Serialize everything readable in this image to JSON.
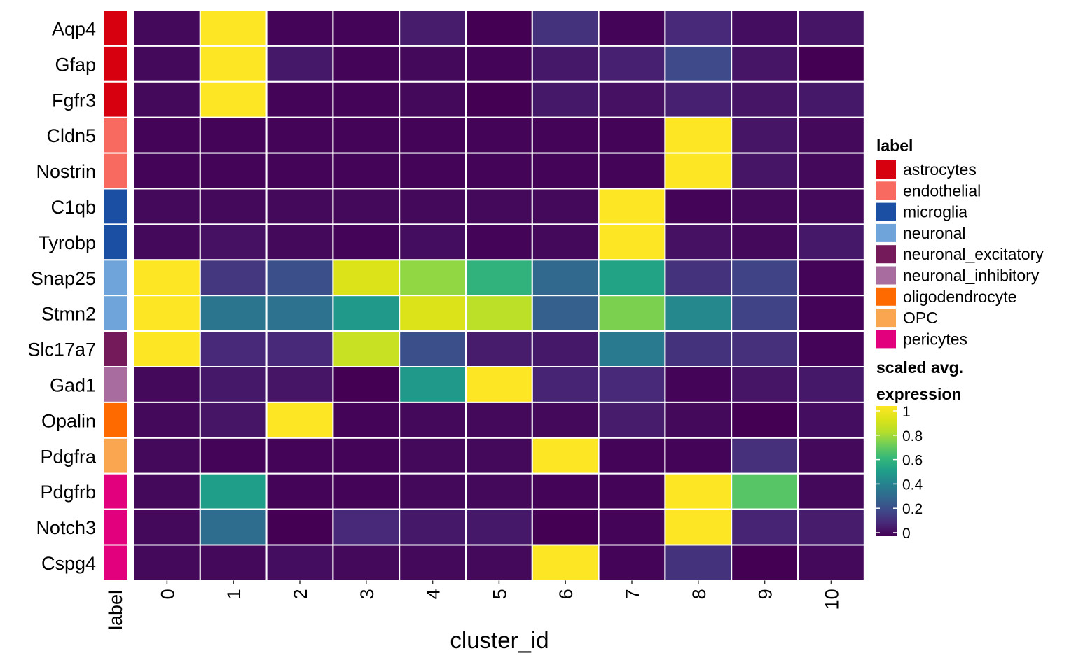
{
  "chart_data": {
    "type": "heatmap",
    "title": "",
    "xlabel": "cluster_id",
    "annotation_column_label": "label",
    "x": [
      "0",
      "1",
      "2",
      "3",
      "4",
      "5",
      "6",
      "7",
      "8",
      "9",
      "10"
    ],
    "genes": [
      "Aqp4",
      "Gfap",
      "Fgfr3",
      "Cldn5",
      "Nostrin",
      "C1qb",
      "Tyrobp",
      "Snap25",
      "Stmn2",
      "Slc17a7",
      "Gad1",
      "Opalin",
      "Pdgfra",
      "Pdgfrb",
      "Notch3",
      "Cspg4"
    ],
    "gene_labels": [
      "astrocytes",
      "astrocytes",
      "astrocytes",
      "endothelial",
      "endothelial",
      "microglia",
      "microglia",
      "neuronal",
      "neuronal",
      "neuronal_excitatory",
      "neuronal_inhibitory",
      "oligodendrocyte",
      "OPC",
      "pericytes",
      "pericytes",
      "pericytes"
    ],
    "values": [
      [
        0.02,
        1.0,
        0.01,
        0.01,
        0.07,
        0.0,
        0.13,
        0.01,
        0.1,
        0.03,
        0.05
      ],
      [
        0.02,
        1.0,
        0.06,
        0.01,
        0.02,
        0.01,
        0.06,
        0.08,
        0.2,
        0.05,
        0.0
      ],
      [
        0.02,
        1.0,
        0.01,
        0.01,
        0.02,
        0.0,
        0.06,
        0.04,
        0.08,
        0.05,
        0.06
      ],
      [
        0.01,
        0.01,
        0.01,
        0.01,
        0.01,
        0.01,
        0.01,
        0.01,
        1.0,
        0.05,
        0.02
      ],
      [
        0.01,
        0.01,
        0.01,
        0.01,
        0.01,
        0.01,
        0.01,
        0.01,
        1.0,
        0.05,
        0.02
      ],
      [
        0.02,
        0.02,
        0.02,
        0.02,
        0.02,
        0.02,
        0.02,
        1.0,
        0.01,
        0.02,
        0.02
      ],
      [
        0.02,
        0.04,
        0.02,
        0.01,
        0.03,
        0.01,
        0.02,
        1.0,
        0.04,
        0.02,
        0.06
      ],
      [
        1.0,
        0.14,
        0.22,
        0.9,
        0.75,
        0.58,
        0.3,
        0.52,
        0.13,
        0.18,
        0.01
      ],
      [
        1.0,
        0.35,
        0.34,
        0.48,
        0.9,
        0.82,
        0.27,
        0.72,
        0.42,
        0.18,
        0.01
      ],
      [
        1.0,
        0.1,
        0.1,
        0.85,
        0.22,
        0.07,
        0.06,
        0.37,
        0.13,
        0.12,
        0.01
      ],
      [
        0.02,
        0.06,
        0.05,
        0.0,
        0.48,
        1.0,
        0.09,
        0.1,
        0.01,
        0.05,
        0.06
      ],
      [
        0.02,
        0.05,
        1.0,
        0.01,
        0.02,
        0.02,
        0.02,
        0.07,
        0.02,
        0.0,
        0.03
      ],
      [
        0.02,
        0.01,
        0.01,
        0.01,
        0.02,
        0.02,
        1.0,
        0.01,
        0.01,
        0.12,
        0.02
      ],
      [
        0.02,
        0.5,
        0.01,
        0.01,
        0.02,
        0.02,
        0.01,
        0.01,
        1.0,
        0.66,
        0.02
      ],
      [
        0.02,
        0.32,
        0.0,
        0.1,
        0.06,
        0.06,
        0.0,
        0.01,
        1.0,
        0.09,
        0.07
      ],
      [
        0.02,
        0.02,
        0.03,
        0.02,
        0.02,
        0.02,
        1.0,
        0.01,
        0.13,
        0.0,
        0.02
      ]
    ],
    "value_range": [
      0,
      1
    ],
    "colormap": "viridis",
    "legend_placement": "right",
    "legends": {
      "label": {
        "title": "label",
        "entries": [
          {
            "name": "astrocytes",
            "color": "#D7000F"
          },
          {
            "name": "endothelial",
            "color": "#F8695F"
          },
          {
            "name": "microglia",
            "color": "#1A4FA3"
          },
          {
            "name": "neuronal",
            "color": "#6FA4DA"
          },
          {
            "name": "neuronal_excitatory",
            "color": "#741A5A"
          },
          {
            "name": "neuronal_inhibitory",
            "color": "#A96C9E"
          },
          {
            "name": "oligodendrocyte",
            "color": "#FF6A00"
          },
          {
            "name": "OPC",
            "color": "#FAA650"
          },
          {
            "name": "pericytes",
            "color": "#E2007D"
          }
        ]
      },
      "color": {
        "title_line1": "scaled avg.",
        "title_line2": "expression",
        "ticks": [
          0,
          0.2,
          0.4,
          0.6,
          0.8,
          1
        ],
        "tick_labels": [
          "0",
          "0.2",
          "0.4",
          "0.6",
          "0.8",
          "1"
        ]
      }
    }
  }
}
